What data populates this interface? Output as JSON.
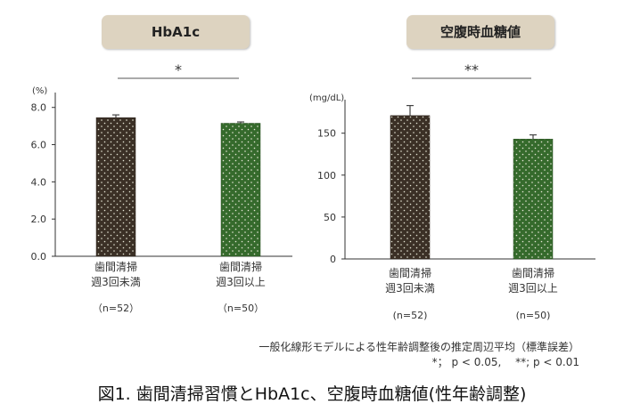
{
  "chart_data": [
    {
      "type": "bar",
      "title": "HbA1c",
      "unit": "(%)",
      "categories": [
        {
          "line1": "歯間清掃",
          "line2": "週3回未満",
          "n": "（n=52）"
        },
        {
          "line1": "歯間清掃",
          "line2": "週3回以上",
          "n": "（n=50）"
        }
      ],
      "values": [
        7.45,
        7.15
      ],
      "errors": [
        0.15,
        0.07
      ],
      "ylim": [
        0,
        8.8
      ],
      "yticks": [
        0,
        2,
        4,
        6,
        8
      ],
      "ytick_labels": [
        "0.0",
        "2.0",
        "4.0",
        "6.0",
        "8.0"
      ],
      "significance": "*"
    },
    {
      "type": "bar",
      "title": "空腹時血糖値",
      "unit": "(mg/dL)",
      "categories": [
        {
          "line1": "歯間清掃",
          "line2": "週3回未満",
          "n": "(n=52)"
        },
        {
          "line1": "歯間清掃",
          "line2": "週3回以上",
          "n": "(n=50)"
        }
      ],
      "values": [
        171,
        143
      ],
      "errors": [
        12,
        5
      ],
      "ylim": [
        0,
        190
      ],
      "yticks": [
        0,
        50,
        100,
        150
      ],
      "ytick_labels": [
        "0",
        "50",
        "100",
        "150"
      ],
      "significance": "**"
    }
  ],
  "colors": {
    "group1": "#3b3026",
    "group2": "#356a2c",
    "dot": "#e8e8d8",
    "title_bg": "#ddd3c0"
  },
  "notes": {
    "line1": "一般化線形モデルによる性年齢調整後の推定周辺平均（標準誤差）",
    "line2": "*； p < 0.05,　 **; p < 0.01"
  },
  "caption": "図1.  歯間清掃習慣とHbA1c、空腹時血糖値(性年齢調整)"
}
